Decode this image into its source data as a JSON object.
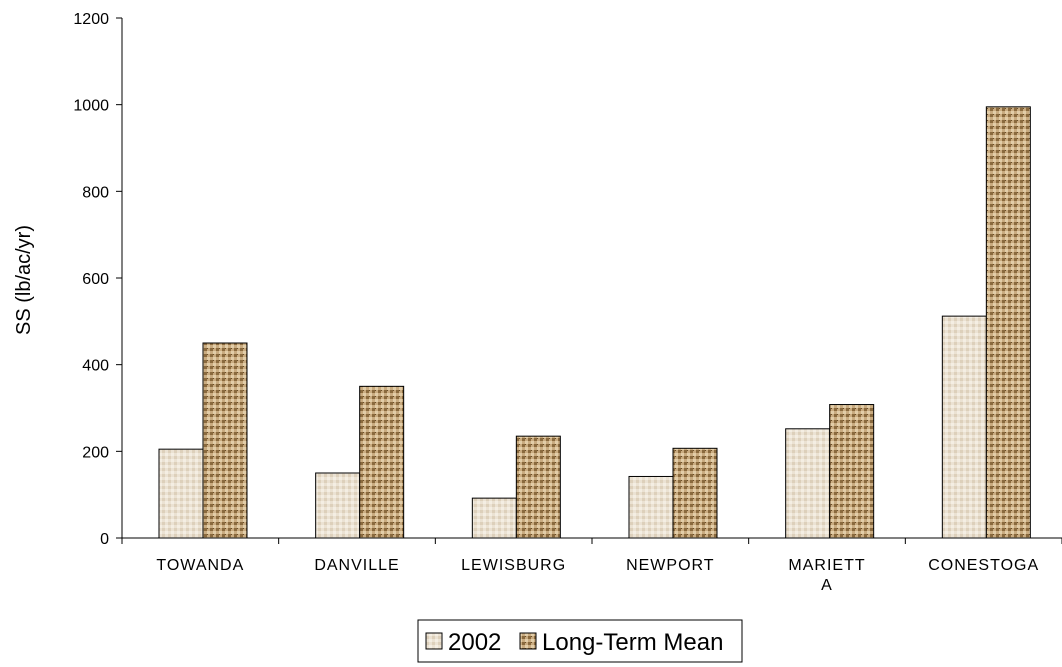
{
  "chart_data": {
    "type": "bar",
    "title": "",
    "xlabel": "",
    "ylabel": "SS (lb/ac/yr)",
    "ylim": [
      0,
      1200
    ],
    "yticks": [
      0,
      200,
      400,
      600,
      800,
      1000,
      1200
    ],
    "categories": [
      "TOWANDA",
      "DANVILLE",
      "LEWISBURG",
      "NEWPORT",
      "MARIETT\nA",
      "CONESTOGA"
    ],
    "series": [
      {
        "name": "2002",
        "values": [
          205,
          150,
          92,
          142,
          252,
          512
        ],
        "color": "#e8dccb"
      },
      {
        "name": "Long-Term Mean",
        "values": [
          450,
          350,
          235,
          207,
          308,
          995
        ],
        "color": "#b08a5a"
      }
    ],
    "grid": false,
    "legend": "bottom"
  }
}
